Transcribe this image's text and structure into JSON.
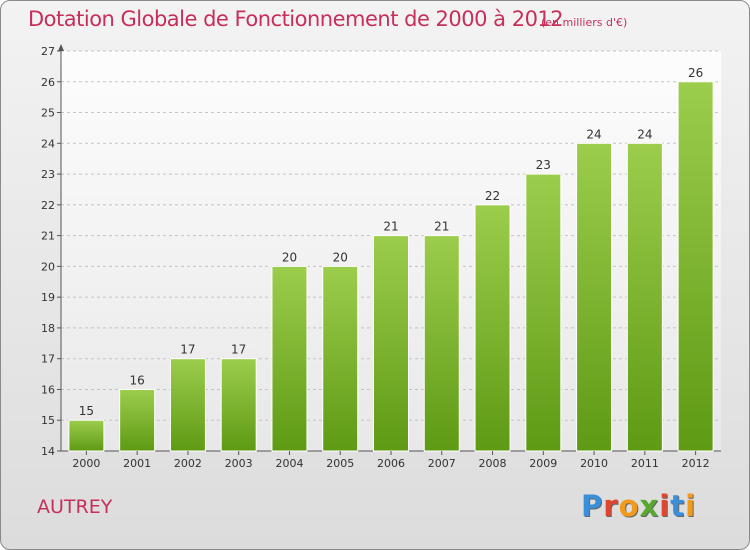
{
  "header": {
    "title": "Dotation Globale de Fonctionnement de 2000 à 2012",
    "unit": "(en milliers d'€)"
  },
  "footer": {
    "commune": "AUTREY",
    "logo_letters": [
      {
        "ch": "P",
        "color": "#3a8fd8"
      },
      {
        "ch": "r",
        "color": "#e0462f"
      },
      {
        "ch": "o",
        "color": "#f29a1c"
      },
      {
        "ch": "x",
        "color": "#5aa92f"
      },
      {
        "ch": "i",
        "color": "#e0462f"
      },
      {
        "ch": "t",
        "color": "#3a8fd8"
      },
      {
        "ch": "i",
        "color": "#f29a1c"
      }
    ]
  },
  "colors": {
    "bar_top": "#9ccd4c",
    "bar_bottom": "#5e9a14",
    "title": "#c72f5b"
  },
  "chart_data": {
    "type": "bar",
    "title": "Dotation Globale de Fonctionnement de 2000 à 2012",
    "subtitle": "(en milliers d'€)",
    "categories": [
      "2000",
      "2001",
      "2002",
      "2003",
      "2004",
      "2005",
      "2006",
      "2007",
      "2008",
      "2009",
      "2010",
      "2011",
      "2012"
    ],
    "values": [
      15,
      16,
      17,
      17,
      20,
      20,
      21,
      21,
      22,
      23,
      24,
      24,
      26
    ],
    "ylim": [
      14,
      27
    ],
    "yticks": [
      14,
      15,
      16,
      17,
      18,
      19,
      20,
      21,
      22,
      23,
      24,
      25,
      26,
      27
    ],
    "grid": true,
    "data_labels": true
  }
}
